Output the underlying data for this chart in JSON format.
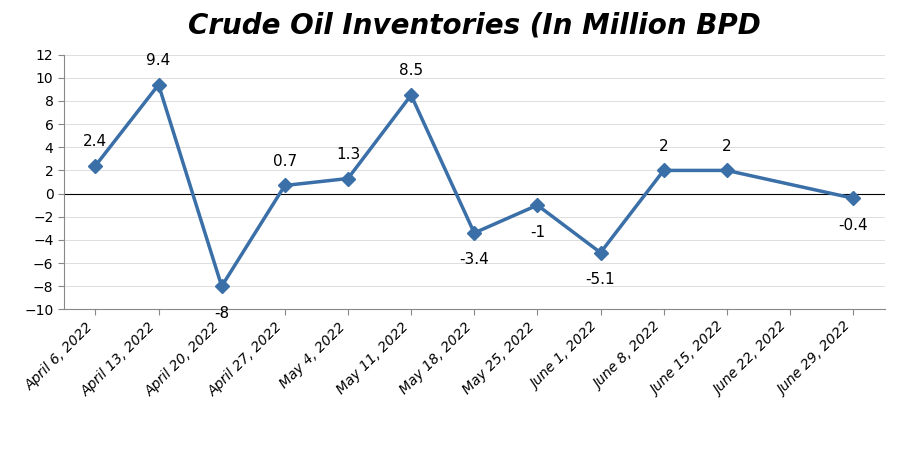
{
  "title": "Crude Oil Inventories (In Million BPD",
  "categories": [
    "April 6, 2022",
    "April 13, 2022",
    "April 20, 2022",
    "April 27, 2022",
    "May 4, 2022",
    "May 11, 2022",
    "May 18, 2022",
    "May 25, 2022",
    "June 1, 2022",
    "June 8, 2022",
    "June 15, 2022",
    "June 22, 2022",
    "June 29, 2022"
  ],
  "data_x": [
    0,
    1,
    2,
    3,
    4,
    5,
    6,
    7,
    8,
    9,
    10,
    12
  ],
  "data_values": [
    2.4,
    9.4,
    -8.0,
    0.7,
    1.3,
    8.5,
    -3.4,
    -1.0,
    -5.1,
    2.0,
    2.0,
    -0.4
  ],
  "label_vals": [
    "2.4",
    "9.4",
    "-8",
    "0.7",
    "1.3",
    "8.5",
    "-3.4",
    "-1",
    "-5.1",
    "2",
    "2",
    "-0.4"
  ],
  "label_above": [
    true,
    true,
    false,
    true,
    true,
    true,
    false,
    false,
    false,
    true,
    true,
    false
  ],
  "ylim": [
    -10,
    12
  ],
  "yticks": [
    -10,
    -8,
    -6,
    -4,
    -2,
    0,
    2,
    4,
    6,
    8,
    10,
    12
  ],
  "line_color": "#3a6fa8",
  "marker_color": "#3a6fa8",
  "background_color": "#ffffff",
  "title_fontsize": 20,
  "label_fontsize": 11,
  "tick_fontsize": 10
}
